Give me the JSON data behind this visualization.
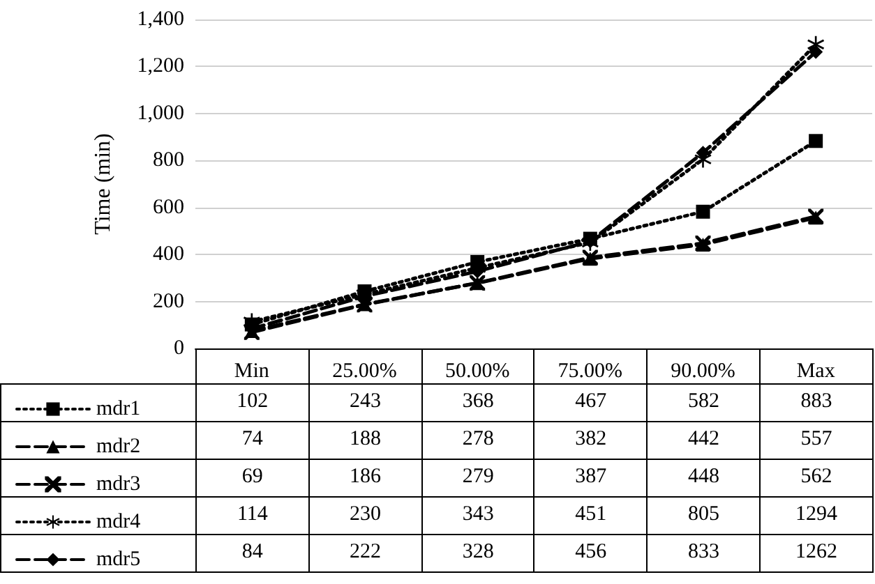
{
  "chart_data": {
    "type": "line",
    "ylabel": "Time (min)",
    "categories": [
      "Min",
      "25.00%",
      "50.00%",
      "75.00%",
      "90.00%",
      "Max"
    ],
    "ylim": [
      0,
      1400
    ],
    "yticks": [
      0,
      200,
      400,
      600,
      800,
      {
        "value": 1000,
        "label": "1,000"
      },
      {
        "value": 1200,
        "label": "1,200"
      },
      {
        "value": 1400,
        "label": "1,400"
      }
    ],
    "grid": "y",
    "legend": "bottom left",
    "data_labels": true,
    "series": [
      {
        "name": "mdr1",
        "color": "#000000",
        "marker": "square",
        "line_style": "dotted",
        "values": [
          102,
          243,
          368,
          467,
          582,
          883
        ]
      },
      {
        "name": "mdr2",
        "color": "#000000",
        "marker": "triangle",
        "line_style": "dashed",
        "values": [
          74,
          188,
          278,
          382,
          442,
          557
        ]
      },
      {
        "name": "mdr3",
        "color": "#000000",
        "marker": "cross",
        "line_style": "dashed",
        "values": [
          69,
          186,
          279,
          387,
          448,
          562
        ]
      },
      {
        "name": "mdr4",
        "color": "#000000",
        "marker": "star",
        "line_style": "dotted",
        "values": [
          114,
          230,
          343,
          451,
          805,
          1294
        ]
      },
      {
        "name": "mdr5",
        "color": "#000000",
        "marker": "diamond",
        "line_style": "dashed",
        "values": [
          84,
          222,
          328,
          456,
          833,
          1262
        ]
      }
    ]
  }
}
